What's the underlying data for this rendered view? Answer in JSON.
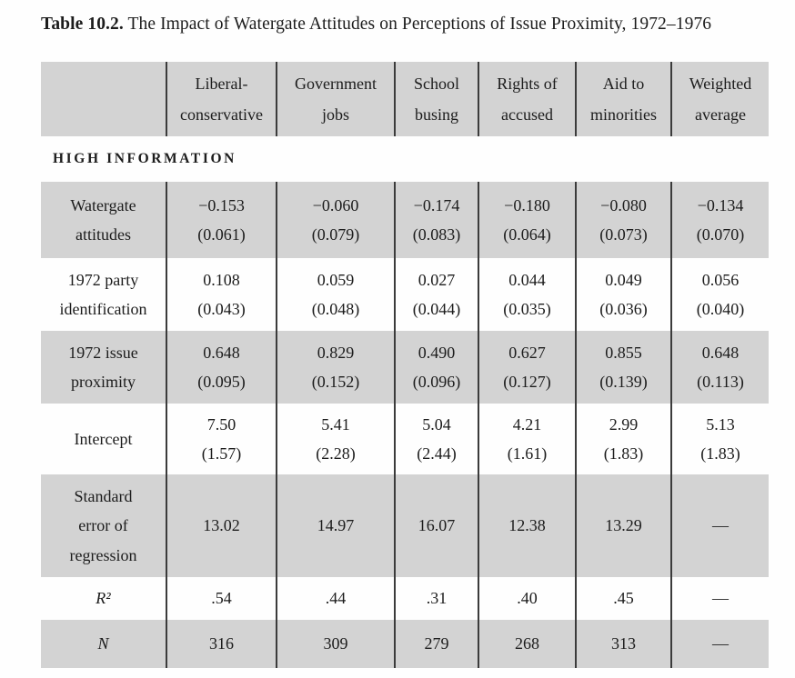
{
  "title": {
    "label": "Table 10.2.",
    "text": " The Impact of Watergate Attitudes on Perceptions of Issue Proximity, 1972–1976"
  },
  "table": {
    "section_header": "HIGH INFORMATION",
    "columns": [
      {
        "line1": "Liberal-",
        "line2": "conservative"
      },
      {
        "line1": "Government",
        "line2": "jobs"
      },
      {
        "line1": "School",
        "line2": "busing"
      },
      {
        "line1": "Rights of",
        "line2": "accused"
      },
      {
        "line1": "Aid to",
        "line2": "minorities"
      },
      {
        "line1": "Weighted",
        "line2": "average"
      }
    ],
    "rows": [
      {
        "label_line1": "Watergate",
        "label_line2": "attitudes",
        "cells": [
          {
            "v": "−0.153",
            "se": "(0.061)"
          },
          {
            "v": "−0.060",
            "se": "(0.079)"
          },
          {
            "v": "−0.174",
            "se": "(0.083)"
          },
          {
            "v": "−0.180",
            "se": "(0.064)"
          },
          {
            "v": "−0.080",
            "se": "(0.073)"
          },
          {
            "v": "−0.134",
            "se": "(0.070)"
          }
        ]
      },
      {
        "label_line1": "1972 party",
        "label_line2": "identification",
        "cells": [
          {
            "v": "0.108",
            "se": "(0.043)"
          },
          {
            "v": "0.059",
            "se": "(0.048)"
          },
          {
            "v": "0.027",
            "se": "(0.044)"
          },
          {
            "v": "0.044",
            "se": "(0.035)"
          },
          {
            "v": "0.049",
            "se": "(0.036)"
          },
          {
            "v": "0.056",
            "se": "(0.040)"
          }
        ]
      },
      {
        "label_line1": "1972 issue",
        "label_line2": "proximity",
        "cells": [
          {
            "v": "0.648",
            "se": "(0.095)"
          },
          {
            "v": "0.829",
            "se": "(0.152)"
          },
          {
            "v": "0.490",
            "se": "(0.096)"
          },
          {
            "v": "0.627",
            "se": "(0.127)"
          },
          {
            "v": "0.855",
            "se": "(0.139)"
          },
          {
            "v": "0.648",
            "se": "(0.113)"
          }
        ]
      },
      {
        "label_line1": "Intercept",
        "cells": [
          {
            "v": "7.50",
            "se": "(1.57)"
          },
          {
            "v": "5.41",
            "se": "(2.28)"
          },
          {
            "v": "5.04",
            "se": "(2.44)"
          },
          {
            "v": "4.21",
            "se": "(1.61)"
          },
          {
            "v": "2.99",
            "se": "(1.83)"
          },
          {
            "v": "5.13",
            "se": "(1.83)"
          }
        ]
      },
      {
        "label_line1": "Standard",
        "label_line2": "error of",
        "label_line3": "regression",
        "cells": [
          {
            "v": "13.02"
          },
          {
            "v": "14.97"
          },
          {
            "v": "16.07"
          },
          {
            "v": "12.38"
          },
          {
            "v": "13.29"
          },
          {
            "v": "—"
          }
        ]
      },
      {
        "label_line1": "R²",
        "cells": [
          {
            "v": ".54"
          },
          {
            "v": ".44"
          },
          {
            "v": ".31"
          },
          {
            "v": ".40"
          },
          {
            "v": ".45"
          },
          {
            "v": "—"
          }
        ]
      },
      {
        "label_line1": "N",
        "cells": [
          {
            "v": "316"
          },
          {
            "v": "309"
          },
          {
            "v": "279"
          },
          {
            "v": "268"
          },
          {
            "v": "313"
          },
          {
            "v": "—"
          }
        ]
      }
    ]
  }
}
